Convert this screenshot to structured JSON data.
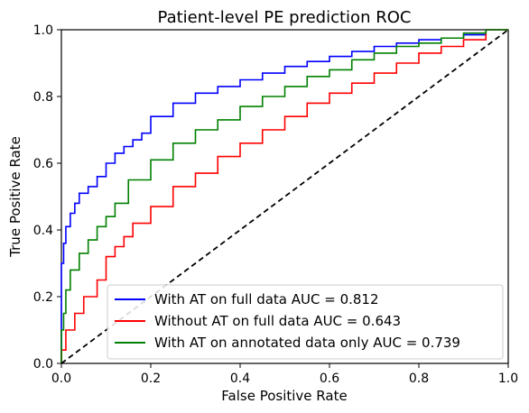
{
  "chart_data": {
    "type": "line",
    "title": "Patient-level PE prediction ROC",
    "xlabel": "False Positive Rate",
    "ylabel": "True Positive Rate",
    "xlim": [
      0.0,
      1.0
    ],
    "ylim": [
      0.0,
      1.0
    ],
    "xticks": [
      "0.0",
      "0.2",
      "0.4",
      "0.6",
      "0.8",
      "1.0"
    ],
    "yticks": [
      "0.0",
      "0.2",
      "0.4",
      "0.6",
      "0.8",
      "1.0"
    ],
    "grid": false,
    "legend_position": "bottom-right",
    "series": [
      {
        "name": "With AT on full data  AUC = 0.812",
        "color": "#0000ff",
        "x": [
          0.0,
          0.0,
          0.005,
          0.01,
          0.02,
          0.03,
          0.04,
          0.06,
          0.08,
          0.1,
          0.12,
          0.14,
          0.16,
          0.18,
          0.2,
          0.25,
          0.3,
          0.35,
          0.4,
          0.45,
          0.5,
          0.55,
          0.6,
          0.65,
          0.7,
          0.75,
          0.8,
          0.85,
          0.9,
          0.95,
          1.0
        ],
        "y": [
          0.0,
          0.23,
          0.3,
          0.36,
          0.41,
          0.45,
          0.48,
          0.51,
          0.53,
          0.56,
          0.6,
          0.63,
          0.65,
          0.67,
          0.69,
          0.74,
          0.78,
          0.81,
          0.83,
          0.85,
          0.87,
          0.89,
          0.905,
          0.92,
          0.935,
          0.95,
          0.96,
          0.97,
          0.975,
          0.985,
          1.0
        ]
      },
      {
        "name": "Without AT on full data AUC = 0.643",
        "color": "#ff0000",
        "x": [
          0.0,
          0.01,
          0.03,
          0.05,
          0.08,
          0.1,
          0.12,
          0.14,
          0.16,
          0.2,
          0.25,
          0.3,
          0.35,
          0.4,
          0.45,
          0.5,
          0.55,
          0.6,
          0.65,
          0.7,
          0.75,
          0.8,
          0.85,
          0.9,
          0.95,
          1.0
        ],
        "y": [
          0.0,
          0.04,
          0.1,
          0.15,
          0.2,
          0.25,
          0.32,
          0.35,
          0.38,
          0.42,
          0.47,
          0.53,
          0.57,
          0.62,
          0.66,
          0.7,
          0.74,
          0.78,
          0.81,
          0.84,
          0.87,
          0.9,
          0.93,
          0.95,
          0.97,
          1.0
        ]
      },
      {
        "name": "With AT on annotated data only AUC = 0.739",
        "color": "#008000",
        "x": [
          0.0,
          0.005,
          0.01,
          0.02,
          0.04,
          0.06,
          0.08,
          0.1,
          0.12,
          0.15,
          0.2,
          0.25,
          0.3,
          0.35,
          0.4,
          0.45,
          0.5,
          0.55,
          0.6,
          0.65,
          0.7,
          0.75,
          0.8,
          0.85,
          0.9,
          0.95,
          1.0
        ],
        "y": [
          0.0,
          0.1,
          0.15,
          0.22,
          0.28,
          0.33,
          0.37,
          0.41,
          0.44,
          0.48,
          0.55,
          0.61,
          0.66,
          0.7,
          0.73,
          0.77,
          0.8,
          0.83,
          0.86,
          0.88,
          0.91,
          0.93,
          0.95,
          0.96,
          0.975,
          0.99,
          1.0
        ]
      }
    ],
    "reference_line": {
      "x": [
        0.0,
        1.0
      ],
      "y": [
        0.0,
        1.0
      ],
      "color": "#000000",
      "style": "dashed"
    }
  }
}
